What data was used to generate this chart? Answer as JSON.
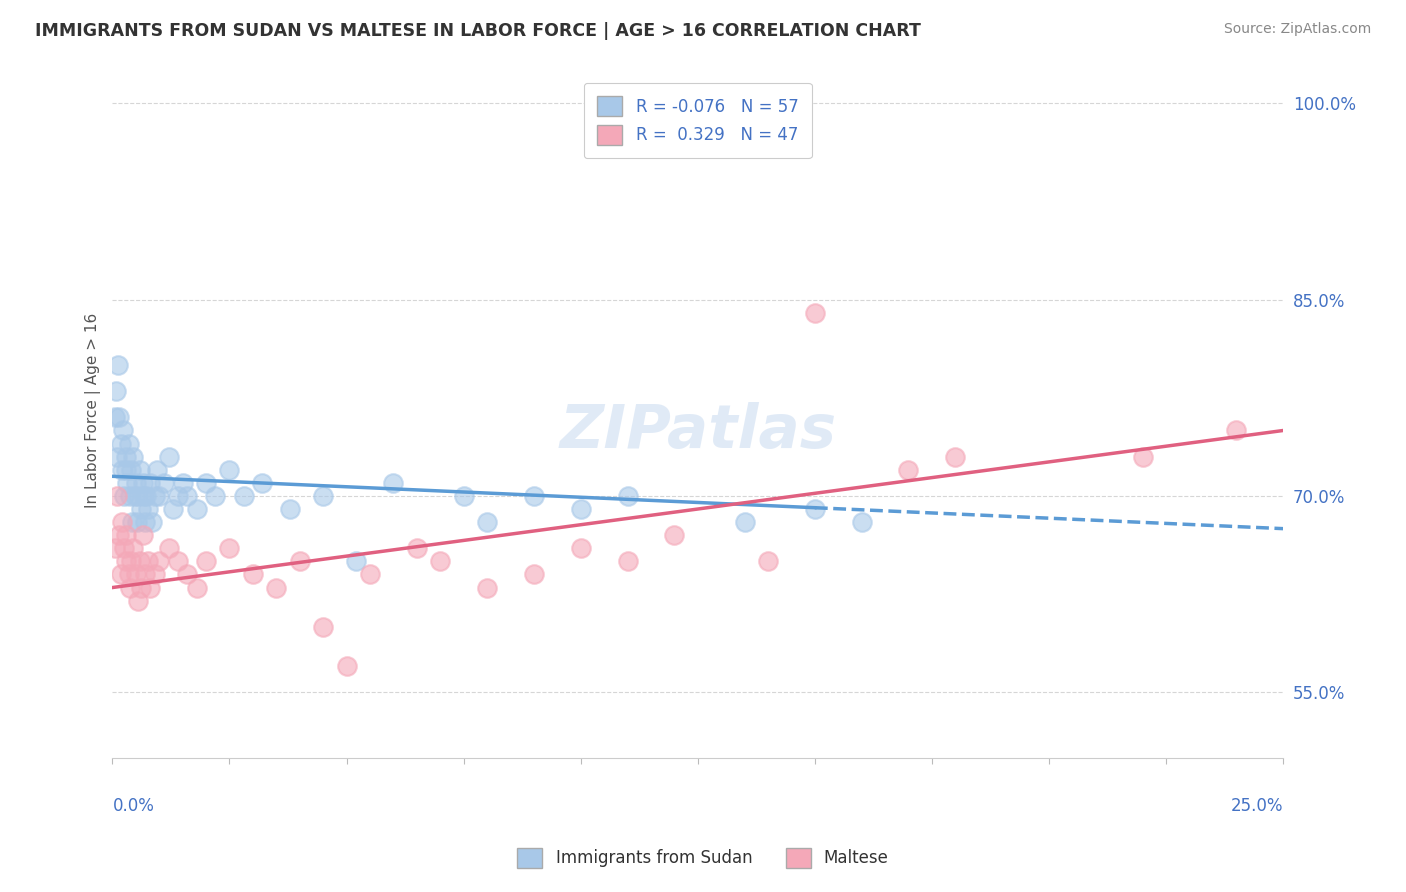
{
  "title": "IMMIGRANTS FROM SUDAN VS MALTESE IN LABOR FORCE | AGE > 16 CORRELATION CHART",
  "source": "Source: ZipAtlas.com",
  "ylabel": "In Labor Force | Age > 16",
  "xmin": 0.0,
  "xmax": 25.0,
  "ymin": 50.0,
  "ymax": 103.0,
  "ytick_vals": [
    55.0,
    70.0,
    85.0,
    100.0
  ],
  "ytick_labels": [
    "55.0%",
    "70.0%",
    "85.0%",
    "100.0%"
  ],
  "legend_r1": "R = -0.076",
  "legend_n1": "N = 57",
  "legend_r2": "R =  0.329",
  "legend_n2": "N = 47",
  "color_blue": "#a8c8e8",
  "color_pink": "#f4a8b8",
  "color_blue_line": "#5b9bd5",
  "color_pink_line": "#e06080",
  "color_text_blue": "#4472c4",
  "watermark": "ZIPatlas",
  "sudan_x": [
    0.05,
    0.08,
    0.1,
    0.12,
    0.15,
    0.18,
    0.2,
    0.22,
    0.25,
    0.28,
    0.3,
    0.32,
    0.35,
    0.38,
    0.4,
    0.42,
    0.45,
    0.48,
    0.5,
    0.52,
    0.55,
    0.58,
    0.6,
    0.65,
    0.68,
    0.7,
    0.72,
    0.75,
    0.8,
    0.85,
    0.9,
    0.95,
    1.0,
    1.1,
    1.2,
    1.3,
    1.4,
    1.5,
    1.6,
    1.8,
    2.0,
    2.2,
    2.5,
    2.8,
    3.2,
    3.8,
    4.5,
    5.2,
    6.0,
    7.5,
    8.0,
    9.0,
    10.0,
    11.0,
    13.5,
    15.0,
    16.0
  ],
  "sudan_y": [
    76.0,
    78.0,
    73.0,
    80.0,
    76.0,
    74.0,
    72.0,
    75.0,
    70.0,
    72.0,
    73.0,
    71.0,
    74.0,
    70.0,
    72.0,
    68.0,
    73.0,
    70.0,
    71.0,
    68.0,
    70.0,
    72.0,
    69.0,
    71.0,
    70.0,
    68.0,
    70.0,
    69.0,
    71.0,
    68.0,
    70.0,
    72.0,
    70.0,
    71.0,
    73.0,
    69.0,
    70.0,
    71.0,
    70.0,
    69.0,
    71.0,
    70.0,
    72.0,
    70.0,
    71.0,
    69.0,
    70.0,
    65.0,
    71.0,
    70.0,
    68.0,
    70.0,
    69.0,
    70.0,
    68.0,
    69.0,
    68.0
  ],
  "maltese_x": [
    0.05,
    0.1,
    0.15,
    0.18,
    0.2,
    0.25,
    0.28,
    0.3,
    0.35,
    0.38,
    0.4,
    0.45,
    0.5,
    0.55,
    0.58,
    0.6,
    0.65,
    0.7,
    0.75,
    0.8,
    0.9,
    1.0,
    1.2,
    1.4,
    1.6,
    1.8,
    2.0,
    2.5,
    3.0,
    3.5,
    4.0,
    4.5,
    5.0,
    5.5,
    6.5,
    7.0,
    8.0,
    9.0,
    10.0,
    11.0,
    12.0,
    14.0,
    15.0,
    17.0,
    18.0,
    22.0,
    24.0
  ],
  "maltese_y": [
    66.0,
    70.0,
    67.0,
    64.0,
    68.0,
    66.0,
    65.0,
    67.0,
    64.0,
    63.0,
    65.0,
    66.0,
    64.0,
    62.0,
    65.0,
    63.0,
    67.0,
    64.0,
    65.0,
    63.0,
    64.0,
    65.0,
    66.0,
    65.0,
    64.0,
    63.0,
    65.0,
    66.0,
    64.0,
    63.0,
    65.0,
    60.0,
    57.0,
    64.0,
    66.0,
    65.0,
    63.0,
    64.0,
    66.0,
    65.0,
    67.0,
    65.0,
    84.0,
    72.0,
    73.0,
    73.0,
    75.0
  ],
  "blue_line_x0": 0.0,
  "blue_line_y0": 71.5,
  "blue_line_x1": 25.0,
  "blue_line_y1": 67.5,
  "blue_dash_start": 15.0,
  "pink_line_x0": 0.0,
  "pink_line_y0": 63.0,
  "pink_line_x1": 25.0,
  "pink_line_y1": 75.0
}
